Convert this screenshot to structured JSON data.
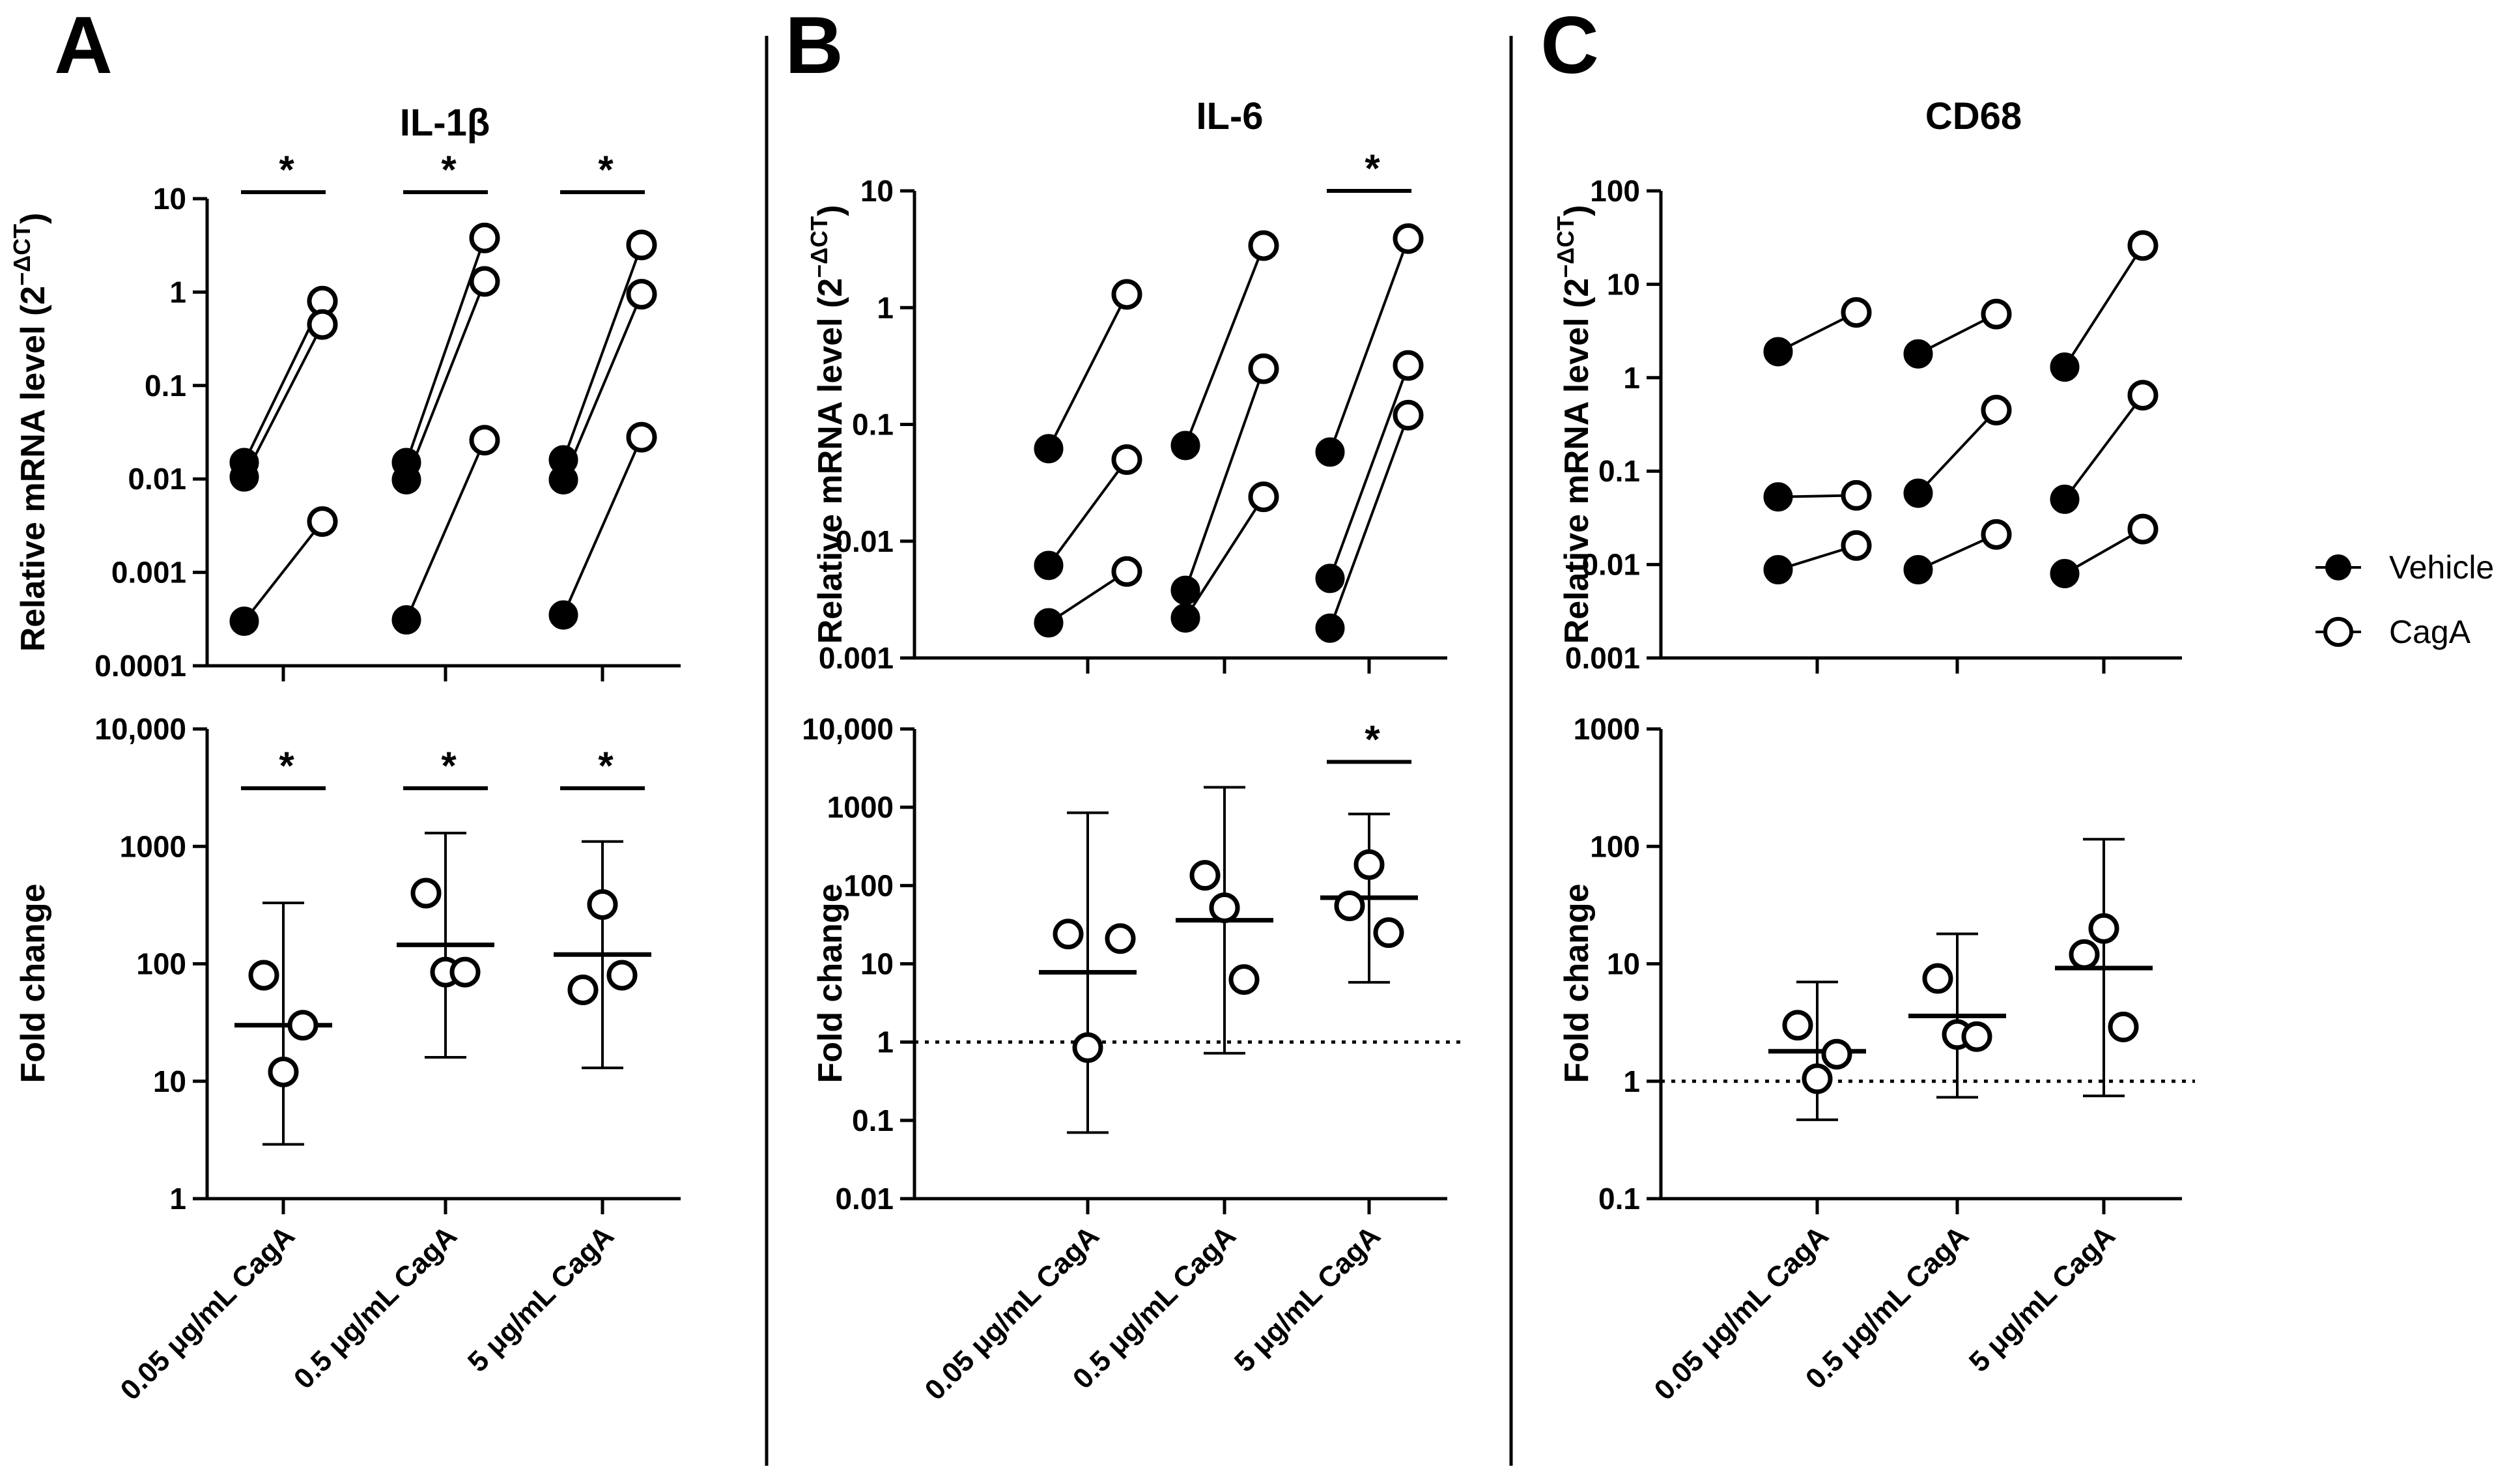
{
  "legend": {
    "vehicle": "Vehicle",
    "caga": "CagA"
  },
  "categories": [
    "0.05 μg/mL CagA",
    "0.5 μg/mL CagA",
    "5 μg/mL CagA"
  ],
  "panels": [
    {
      "letter": "A",
      "gene": "IL-1β",
      "top": {
        "ylabel_main": "Relative mRNA level (2",
        "ylabel_sup": "−ΔCT",
        "ylabel_close": ")",
        "ticks": [
          {
            "v": 0.0001,
            "label": "0.0001"
          },
          {
            "v": 0.001,
            "label": "0.001"
          },
          {
            "v": 0.01,
            "label": "0.01"
          },
          {
            "v": 0.1,
            "label": "0.1"
          },
          {
            "v": 1,
            "label": "1"
          },
          {
            "v": 10,
            "label": "10"
          }
        ]
      },
      "bottom": {
        "ylabel": "Fold change",
        "ticks": [
          {
            "v": 1,
            "label": "1"
          },
          {
            "v": 10,
            "label": "10"
          },
          {
            "v": 100,
            "label": "100"
          },
          {
            "v": 1000,
            "label": "1000"
          },
          {
            "v": 10000,
            "label": "10,000"
          }
        ]
      },
      "star": "*"
    },
    {
      "letter": "B",
      "gene": "IL-6",
      "top": {
        "ylabel_main": "Relative mRNA level (2",
        "ylabel_sup": "−ΔCT",
        "ylabel_close": ")",
        "ticks": [
          {
            "v": 0.001,
            "label": "0.001"
          },
          {
            "v": 0.01,
            "label": "0.01"
          },
          {
            "v": 0.1,
            "label": "0.1"
          },
          {
            "v": 1,
            "label": "1"
          },
          {
            "v": 10,
            "label": "10"
          }
        ]
      },
      "bottom": {
        "ylabel": "Fold change",
        "ticks": [
          {
            "v": 0.01,
            "label": "0.01"
          },
          {
            "v": 0.1,
            "label": "0.1"
          },
          {
            "v": 1,
            "label": "1"
          },
          {
            "v": 10,
            "label": "10"
          },
          {
            "v": 100,
            "label": "100"
          },
          {
            "v": 1000,
            "label": "1000"
          },
          {
            "v": 10000,
            "label": "10,000"
          }
        ]
      },
      "star": "*"
    },
    {
      "letter": "C",
      "gene": "CD68",
      "top": {
        "ylabel_main": "Relative mRNA level (2",
        "ylabel_sup": "−ΔCT",
        "ylabel_close": ")",
        "ticks": [
          {
            "v": 0.001,
            "label": "0.001"
          },
          {
            "v": 0.01,
            "label": "0.01"
          },
          {
            "v": 0.1,
            "label": "0.1"
          },
          {
            "v": 1,
            "label": "1"
          },
          {
            "v": 10,
            "label": "10"
          },
          {
            "v": 100,
            "label": "100"
          }
        ]
      },
      "bottom": {
        "ylabel": "Fold change",
        "ticks": [
          {
            "v": 0.1,
            "label": "0.1"
          },
          {
            "v": 1,
            "label": "1"
          },
          {
            "v": 10,
            "label": "10"
          },
          {
            "v": 100,
            "label": "100"
          },
          {
            "v": 1000,
            "label": "1000"
          }
        ]
      },
      "star": ""
    }
  ],
  "chart_data": [
    {
      "type": "scatter",
      "title": "IL-1β",
      "ylabel": "Relative mRNA level (2−ΔCT)",
      "yscale": "log",
      "ylim": [
        0.0001,
        10
      ],
      "categories": [
        "0.05 μg/mL CagA",
        "0.5 μg/mL CagA",
        "5 μg/mL CagA"
      ],
      "paired": [
        {
          "vehicle": [
            0.015,
            0.0105,
            0.0003
          ],
          "caga": [
            0.8,
            0.45,
            0.0035
          ]
        },
        {
          "vehicle": [
            0.015,
            0.0098,
            0.00031
          ],
          "caga": [
            3.8,
            1.3,
            0.026
          ]
        },
        {
          "vehicle": [
            0.016,
            0.0098,
            0.00035
          ],
          "caga": [
            3.2,
            0.95,
            0.028
          ]
        }
      ],
      "significant": [
        true,
        true,
        true
      ]
    },
    {
      "type": "scatter",
      "title": "IL-1β",
      "ylabel": "Fold change",
      "yscale": "log",
      "ylim": [
        1,
        10000
      ],
      "categories": [
        "0.05 μg/mL CagA",
        "0.5 μg/mL CagA",
        "5 μg/mL CagA"
      ],
      "points": [
        [
          80,
          30,
          12
        ],
        [
          400,
          85,
          85
        ],
        [
          320,
          60,
          80
        ]
      ],
      "mean": [
        30,
        145,
        120
      ],
      "error_low": [
        2.9,
        16,
        13
      ],
      "error_high": [
        330,
        1300,
        1100
      ],
      "significant": [
        true,
        true,
        true
      ]
    },
    {
      "type": "scatter",
      "title": "IL-6",
      "ylabel": "Relative mRNA level (2−ΔCT)",
      "yscale": "log",
      "ylim": [
        0.001,
        10
      ],
      "categories": [
        "0.05 μg/mL CagA",
        "0.5 μg/mL CagA",
        "5 μg/mL CagA"
      ],
      "paired": [
        {
          "vehicle": [
            0.062,
            0.0062,
            0.002
          ],
          "caga": [
            1.3,
            0.05,
            0.0055
          ]
        },
        {
          "vehicle": [
            0.066,
            0.0038,
            0.0022
          ],
          "caga": [
            3.4,
            0.3,
            0.024
          ]
        },
        {
          "vehicle": [
            0.058,
            0.0048,
            0.0018
          ],
          "caga": [
            3.9,
            0.32,
            0.12
          ]
        }
      ],
      "significant": [
        false,
        false,
        true
      ]
    },
    {
      "type": "scatter",
      "title": "IL-6",
      "ylabel": "Fold change",
      "yscale": "log",
      "ylim": [
        0.01,
        10000
      ],
      "categories": [
        "0.05 μg/mL CagA",
        "0.5 μg/mL CagA",
        "5 μg/mL CagA"
      ],
      "points": [
        [
          24,
          21,
          0.85
        ],
        [
          135,
          52,
          6.3
        ],
        [
          185,
          55,
          25
        ]
      ],
      "mean": [
        7.8,
        36,
        70
      ],
      "error_low": [
        0.07,
        0.72,
        5.8
      ],
      "error_high": [
        850,
        1800,
        820
      ],
      "reference_line": 1,
      "significant": [
        false,
        false,
        true
      ]
    },
    {
      "type": "scatter",
      "title": "CD68",
      "ylabel": "Relative mRNA level (2−ΔCT)",
      "yscale": "log",
      "ylim": [
        0.001,
        100
      ],
      "categories": [
        "0.05 μg/mL CagA",
        "0.5 μg/mL CagA",
        "5 μg/mL CagA"
      ],
      "paired": [
        {
          "vehicle": [
            1.9,
            0.053,
            0.0088
          ],
          "caga": [
            5.0,
            0.055,
            0.016
          ]
        },
        {
          "vehicle": [
            1.8,
            0.058,
            0.0088
          ],
          "caga": [
            4.8,
            0.45,
            0.021
          ]
        },
        {
          "vehicle": [
            1.3,
            0.05,
            0.008
          ],
          "caga": [
            26,
            0.65,
            0.024
          ]
        }
      ],
      "significant": [
        false,
        false,
        false
      ]
    },
    {
      "type": "scatter",
      "title": "CD68",
      "ylabel": "Fold change",
      "yscale": "log",
      "ylim": [
        0.1,
        1000
      ],
      "categories": [
        "0.05 μg/mL CagA",
        "0.5 μg/mL CagA",
        "5 μg/mL CagA"
      ],
      "points": [
        [
          3.0,
          1.7,
          1.05
        ],
        [
          7.5,
          2.5,
          2.4
        ],
        [
          20,
          12,
          2.9
        ]
      ],
      "mean": [
        1.8,
        3.6,
        9.2
      ],
      "error_low": [
        0.47,
        0.73,
        0.75
      ],
      "error_high": [
        7.0,
        18,
        115
      ],
      "reference_line": 1,
      "significant": [
        false,
        false,
        false
      ]
    }
  ]
}
